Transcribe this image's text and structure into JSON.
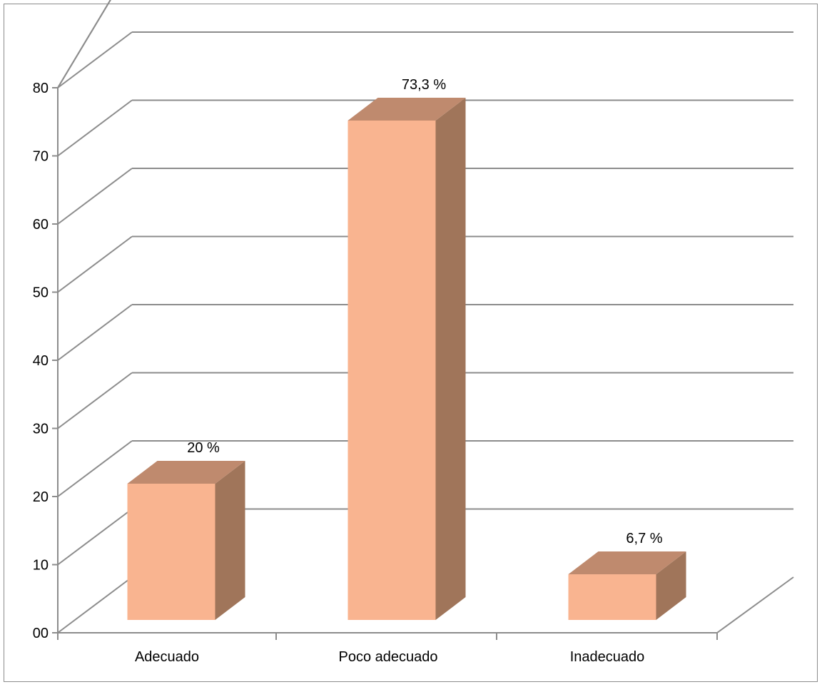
{
  "chart_data": {
    "type": "bar",
    "style": "3d-column",
    "categories": [
      "Adecuado",
      "Poco adecuado",
      "Inadecuado"
    ],
    "values": [
      20,
      73.3,
      6.7
    ],
    "data_labels": [
      "20 %",
      "73,3 %",
      "6,7 %"
    ],
    "y_ticks": [
      "00",
      "10",
      "20",
      "30",
      "40",
      "50",
      "60",
      "70",
      "80"
    ],
    "ylim": [
      0,
      80
    ],
    "title": "",
    "xlabel": "",
    "ylabel": "",
    "grid": true,
    "legend": "none",
    "colors": {
      "bar_front": "#F9B490",
      "bar_side": "#A0755A",
      "bar_top": "#BF8A6E",
      "grid": "#8C8C8C",
      "frame": "#8C8C8C"
    }
  }
}
